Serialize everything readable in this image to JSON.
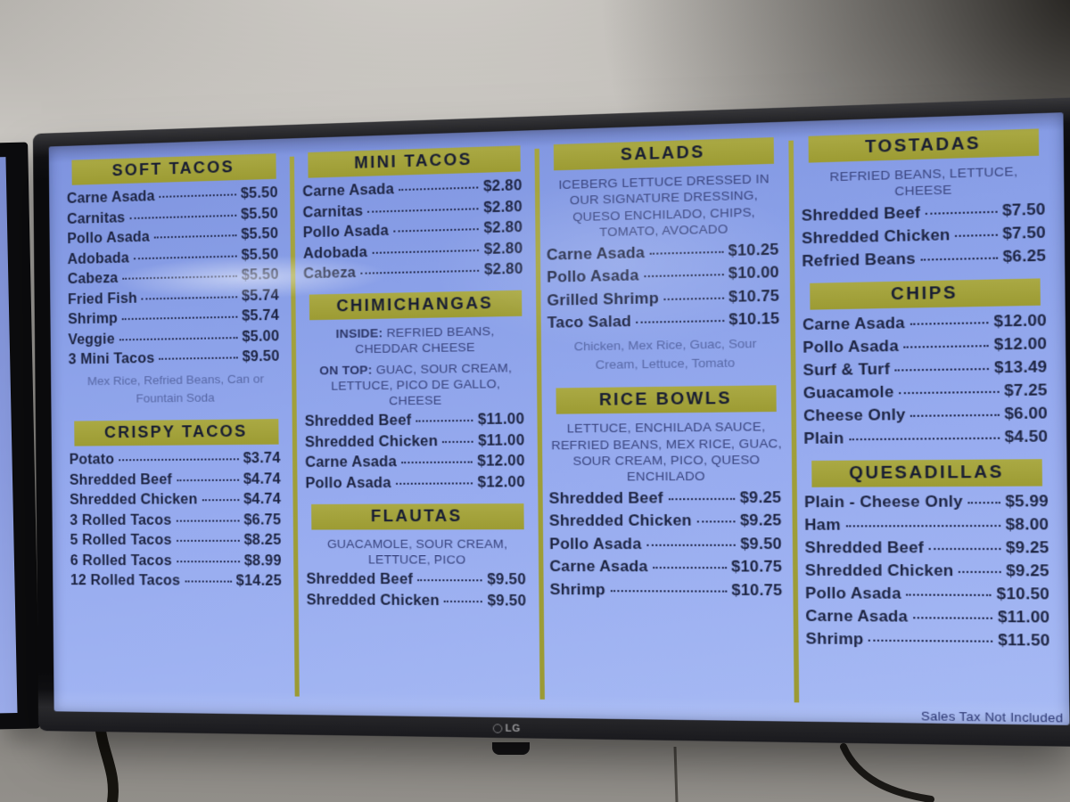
{
  "tv": {
    "brand": "LG",
    "footer_note": "Sales Tax Not Included"
  },
  "colors": {
    "screen_blue_top": "#7e93de",
    "screen_blue_bottom": "#a7baf4",
    "header_olive": "#a2a13a",
    "item_text_navy": "#1d2442",
    "description_navy": "#39447e",
    "note_blue": "#5868a6",
    "bezel_black": "#0a0a0c"
  },
  "menu": {
    "columns": [
      {
        "sections": [
          {
            "title": "SOFT TACOS",
            "items": [
              {
                "name": "Carne Asada",
                "price": "$5.50"
              },
              {
                "name": "Carnitas",
                "price": "$5.50"
              },
              {
                "name": "Pollo Asada",
                "price": "$5.50"
              },
              {
                "name": "Adobada",
                "price": "$5.50"
              },
              {
                "name": "Cabeza",
                "price": "$5.50"
              },
              {
                "name": "Fried Fish",
                "price": "$5.74"
              },
              {
                "name": "Shrimp",
                "price": "$5.74"
              },
              {
                "name": "Veggie",
                "price": "$5.00"
              },
              {
                "name": "3 Mini Tacos",
                "price": "$9.50"
              }
            ],
            "note": "Mex Rice, Refried Beans, Can or Fountain Soda"
          },
          {
            "title": "CRISPY TACOS",
            "items": [
              {
                "name": "Potato",
                "price": "$3.74"
              },
              {
                "name": "Shredded Beef",
                "price": "$4.74"
              },
              {
                "name": "Shredded Chicken",
                "price": "$4.74"
              },
              {
                "name": "3 Rolled Tacos",
                "price": "$6.75"
              },
              {
                "name": "5 Rolled Tacos",
                "price": "$8.25"
              },
              {
                "name": "6 Rolled Tacos",
                "price": "$8.99"
              },
              {
                "name": "12 Rolled Tacos",
                "price": "$14.25"
              }
            ]
          }
        ]
      },
      {
        "sections": [
          {
            "title": "MINI TACOS",
            "items": [
              {
                "name": "Carne Asada",
                "price": "$2.80"
              },
              {
                "name": "Carnitas",
                "price": "$2.80"
              },
              {
                "name": "Pollo Asada",
                "price": "$2.80"
              },
              {
                "name": "Adobada",
                "price": "$2.80"
              },
              {
                "name": "Cabeza",
                "price": "$2.80"
              }
            ]
          },
          {
            "title": "CHIMICHANGAS",
            "description_lines": [
              {
                "label": "INSIDE:",
                "text": "REFRIED BEANS, CHEDDAR CHEESE"
              },
              {
                "label": "ON TOP:",
                "text": "GUAC, SOUR CREAM, LETTUCE, PICO DE GALLO, CHEESE"
              }
            ],
            "items": [
              {
                "name": "Shredded Beef",
                "price": "$11.00"
              },
              {
                "name": "Shredded Chicken",
                "price": "$11.00"
              },
              {
                "name": "Carne Asada",
                "price": "$12.00"
              },
              {
                "name": "Pollo Asada",
                "price": "$12.00"
              }
            ]
          },
          {
            "title": "FLAUTAS",
            "description_lines": [
              {
                "text": "GUACAMOLE, SOUR CREAM, LETTUCE, PICO"
              }
            ],
            "items": [
              {
                "name": "Shredded Beef",
                "price": "$9.50"
              },
              {
                "name": "Shredded Chicken",
                "price": "$9.50"
              }
            ]
          }
        ]
      },
      {
        "sections": [
          {
            "title": "SALADS",
            "description_lines": [
              {
                "text": "ICEBERG LETTUCE DRESSED IN OUR SIGNATURE DRESSING, QUESO ENCHILADO, CHIPS, TOMATO, AVOCADO"
              }
            ],
            "items": [
              {
                "name": "Carne Asada",
                "price": "$10.25"
              },
              {
                "name": "Pollo Asada",
                "price": "$10.00"
              },
              {
                "name": "Grilled Shrimp",
                "price": "$10.75"
              },
              {
                "name": "Taco Salad",
                "price": "$10.15"
              }
            ],
            "note": "Chicken, Mex Rice, Guac, Sour Cream, Lettuce, Tomato"
          },
          {
            "title": "RICE BOWLS",
            "description_lines": [
              {
                "text": "LETTUCE, ENCHILADA SAUCE, REFRIED BEANS, MEX RICE, GUAC, SOUR CREAM, PICO, QUESO ENCHILADO"
              }
            ],
            "items": [
              {
                "name": "Shredded Beef",
                "price": "$9.25"
              },
              {
                "name": "Shredded Chicken",
                "price": "$9.25"
              },
              {
                "name": "Pollo Asada",
                "price": "$9.50"
              },
              {
                "name": "Carne Asada",
                "price": "$10.75"
              },
              {
                "name": "Shrimp",
                "price": "$10.75"
              }
            ]
          }
        ]
      },
      {
        "sections": [
          {
            "title": "TOSTADAS",
            "description_lines": [
              {
                "text": "REFRIED BEANS, LETTUCE, CHEESE"
              }
            ],
            "items": [
              {
                "name": "Shredded Beef",
                "price": "$7.50"
              },
              {
                "name": "Shredded Chicken",
                "price": "$7.50"
              },
              {
                "name": "Refried Beans",
                "price": "$6.25"
              }
            ]
          },
          {
            "title": "CHIPS",
            "items": [
              {
                "name": "Carne Asada",
                "price": "$12.00"
              },
              {
                "name": "Pollo Asada",
                "price": "$12.00"
              },
              {
                "name": "Surf & Turf",
                "price": "$13.49"
              },
              {
                "name": "Guacamole",
                "price": "$7.25"
              },
              {
                "name": "Cheese Only",
                "price": "$6.00"
              },
              {
                "name": "Plain",
                "price": "$4.50"
              }
            ]
          },
          {
            "title": "QUESADILLAS",
            "items": [
              {
                "name": "Plain - Cheese Only",
                "price": "$5.99"
              },
              {
                "name": "Ham",
                "price": "$8.00"
              },
              {
                "name": "Shredded Beef",
                "price": "$9.25"
              },
              {
                "name": "Shredded Chicken",
                "price": "$9.25"
              },
              {
                "name": "Pollo Asada",
                "price": "$10.50"
              },
              {
                "name": "Carne Asada",
                "price": "$11.00"
              },
              {
                "name": "Shrimp",
                "price": "$11.50"
              }
            ]
          }
        ]
      }
    ]
  }
}
